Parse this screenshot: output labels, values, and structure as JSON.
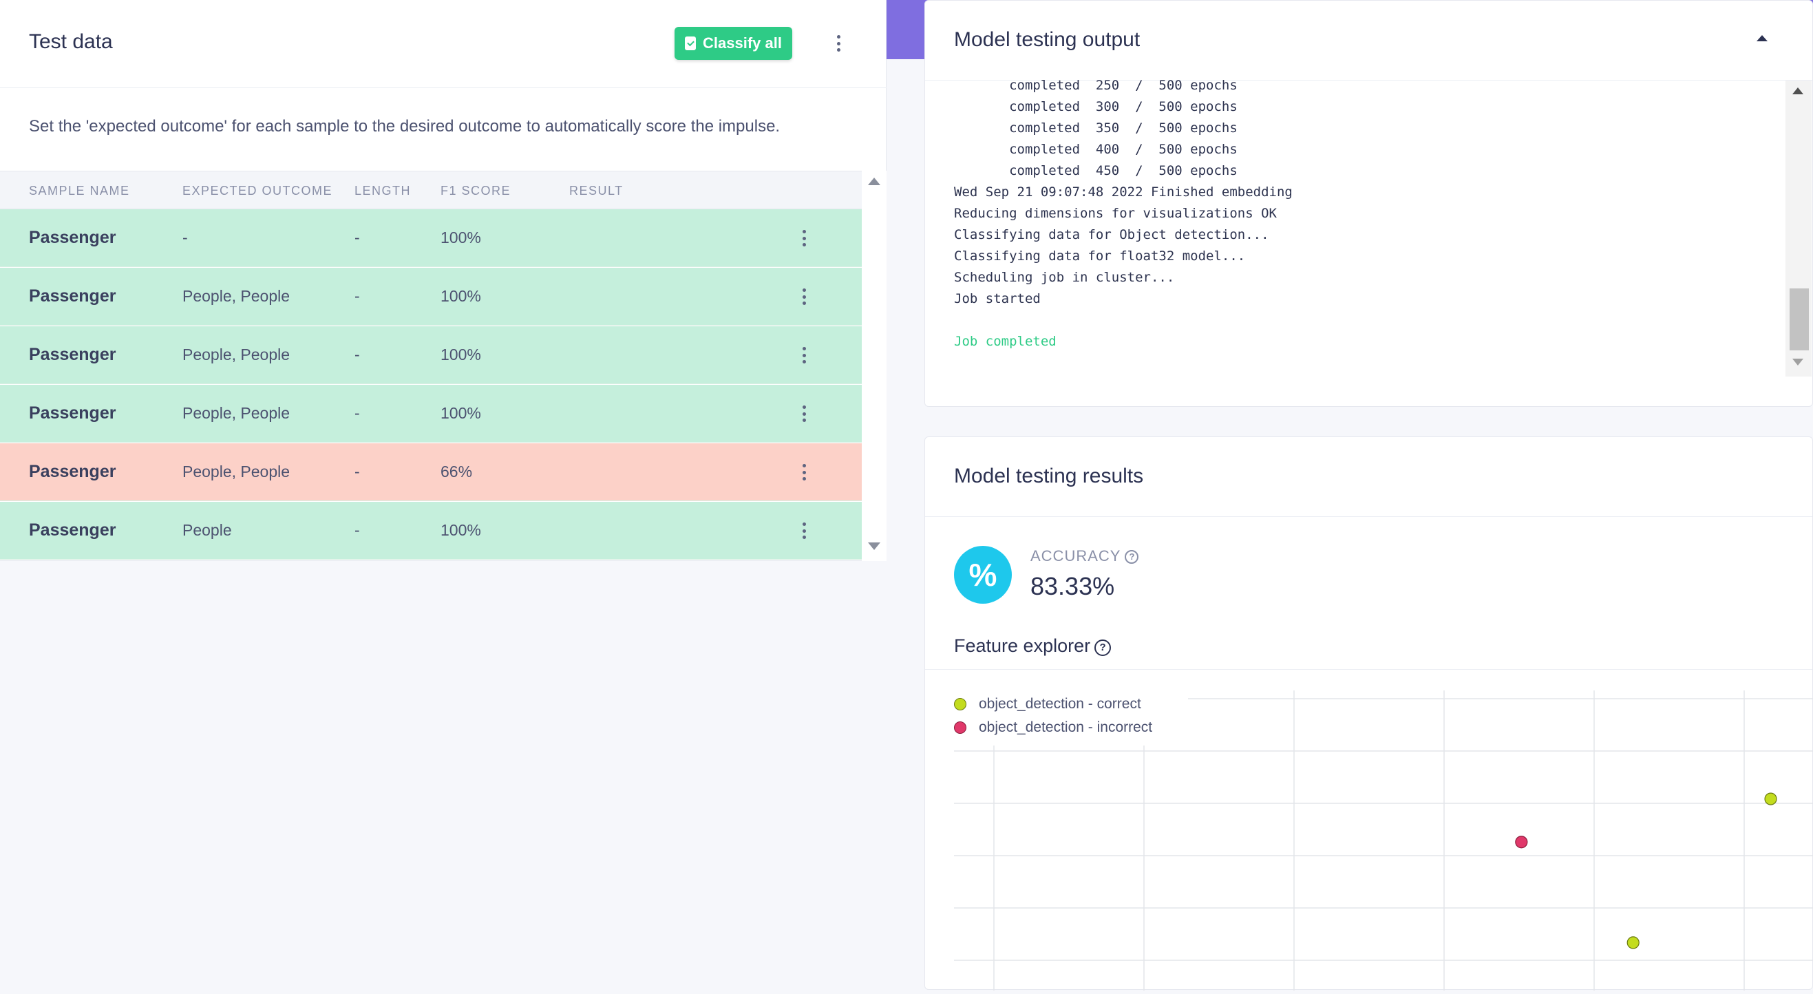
{
  "left": {
    "title": "Test data",
    "classify_label": "Classify all",
    "description": "Set the 'expected outcome' for each sample to the desired outcome to automatically score the impulse.",
    "columns": [
      "SAMPLE NAME",
      "EXPECTED OUTCOME",
      "LENGTH",
      "F1 SCORE",
      "RESULT"
    ],
    "rows": [
      {
        "name": "Passenger",
        "expected": "-",
        "length": "-",
        "f1": "100%",
        "status": "ok"
      },
      {
        "name": "Passenger",
        "expected": "People, People",
        "length": "-",
        "f1": "100%",
        "status": "ok"
      },
      {
        "name": "Passenger",
        "expected": "People, People",
        "length": "-",
        "f1": "100%",
        "status": "ok"
      },
      {
        "name": "Passenger",
        "expected": "People, People",
        "length": "-",
        "f1": "100%",
        "status": "ok"
      },
      {
        "name": "Passenger",
        "expected": "People, People",
        "length": "-",
        "f1": "66%",
        "status": "bad"
      },
      {
        "name": "Passenger",
        "expected": "People",
        "length": "-",
        "f1": "100%",
        "status": "ok"
      }
    ]
  },
  "output": {
    "title": "Model testing output",
    "log_lines": [
      "       completed  250  /  500 epochs",
      "       completed  300  /  500 epochs",
      "       completed  350  /  500 epochs",
      "       completed  400  /  500 epochs",
      "       completed  450  /  500 epochs",
      "Wed Sep 21 09:07:48 2022 Finished embedding",
      "Reducing dimensions for visualizations OK",
      "Classifying data for Object detection...",
      "Classifying data for float32 model...",
      "Scheduling job in cluster...",
      "Job started",
      ""
    ],
    "completed_line": "Job completed"
  },
  "results": {
    "title": "Model testing results",
    "accuracy_icon": "%",
    "accuracy_label": "ACCURACY",
    "accuracy_value": "83.33%",
    "feature_explorer_title": "Feature explorer",
    "help_icon": "question-circle-icon",
    "legend": [
      {
        "label": "object_detection - correct",
        "color": "#c3dc1e"
      },
      {
        "label": "object_detection - incorrect",
        "color": "#e0386a"
      }
    ]
  },
  "chart_data": {
    "type": "scatter",
    "series": [
      {
        "name": "object_detection - correct",
        "color": "#c3dc1e",
        "points": [
          [
            0.79,
            0.2
          ],
          [
            0.95,
            0.8
          ]
        ]
      },
      {
        "name": "object_detection - incorrect",
        "color": "#e0386a",
        "points": [
          [
            0.66,
            0.62
          ]
        ]
      }
    ],
    "grid": true
  },
  "colors": {
    "success": "#2ecb86",
    "row_ok": "#c5efdc",
    "row_bad": "#fcd1c8",
    "accent": "#1ec8ec",
    "header_strip": "#7f6ee0"
  }
}
